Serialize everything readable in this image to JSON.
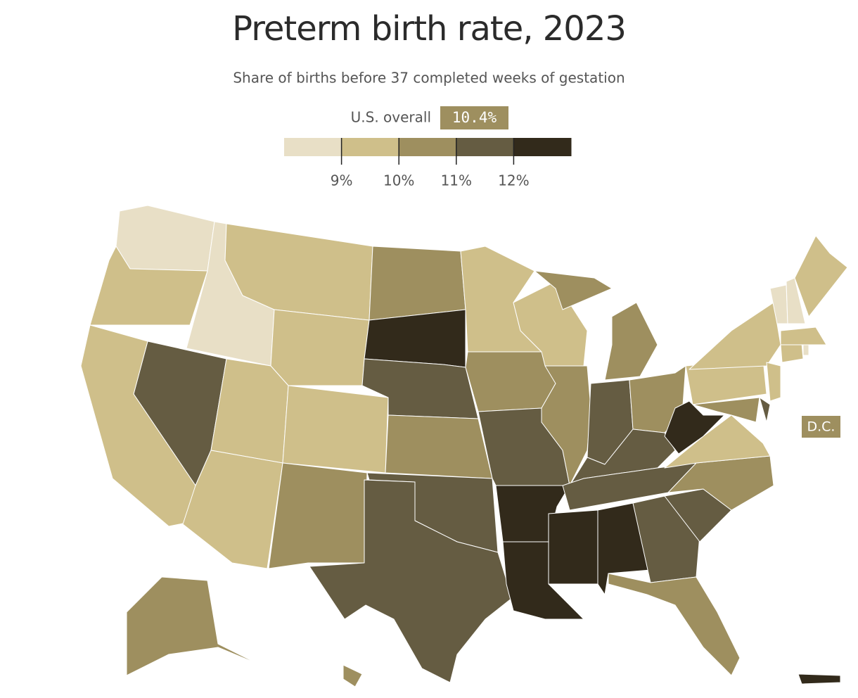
{
  "chart_data": {
    "type": "choropleth",
    "title": "Preterm birth rate, 2023",
    "subtitle": "Share of births before 37 completed weeks of gestation",
    "overall": {
      "label": "U.S. overall",
      "value": 10.4,
      "value_label": "10.4%"
    },
    "legend": {
      "colors": [
        "#e8dfc6",
        "#cfbf8a",
        "#9e8f5f",
        "#655c42",
        "#322a1b"
      ],
      "ticks": [
        {
          "value": 9,
          "label": "9%"
        },
        {
          "value": 10,
          "label": "10%"
        },
        {
          "value": 11,
          "label": "11%"
        },
        {
          "value": 12,
          "label": "12%"
        }
      ]
    },
    "dc": {
      "label": "D.C.",
      "value": 10.5
    },
    "values": [
      8.5,
      9.5,
      8.5,
      9.5,
      9.5,
      11.5,
      9.5,
      9.5,
      9.5,
      9.5,
      10.5,
      10.5,
      12.5,
      11.5,
      10.5,
      11.5,
      11.5,
      9.5,
      10.5,
      11.5,
      12.5,
      12.5,
      9.5,
      10.5,
      10.5,
      10.5,
      11.5,
      10.5,
      11.5,
      11.5,
      12.5,
      12.5,
      11.5,
      10.5,
      11.5,
      10.5,
      9.5,
      12.5,
      9.5,
      9.5,
      10.5,
      11.5,
      9.5,
      9.5,
      8.5,
      9.5,
      8.5,
      8.5,
      9.5,
      10.5,
      10.5,
      12.5
    ]
  }
}
